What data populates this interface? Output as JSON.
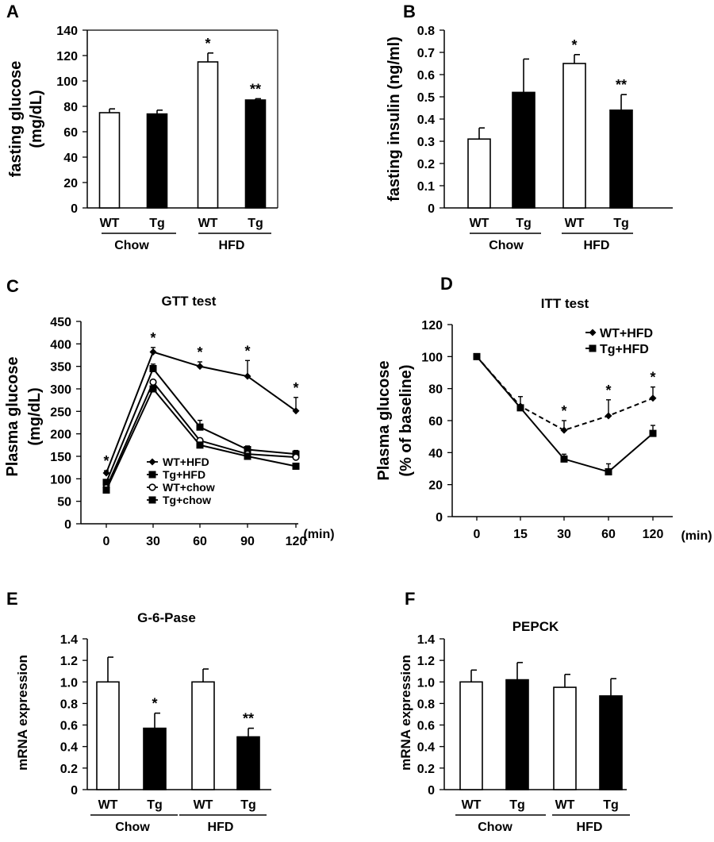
{
  "chart_data": [
    {
      "panel": "A",
      "type": "bar",
      "title": "",
      "ylabel_lines": [
        "fasting glucose",
        "(mg/dL)"
      ],
      "ylim": [
        0,
        140
      ],
      "yticks": [
        "0",
        "20",
        "40",
        "60",
        "80",
        "100",
        "120",
        "140"
      ],
      "categories": [
        "WT",
        "Tg",
        "WT",
        "Tg"
      ],
      "groups": [
        "Chow",
        "HFD"
      ],
      "values": [
        75,
        74,
        115,
        85
      ],
      "errors": [
        3,
        3,
        7,
        1
      ],
      "fills": [
        "#ffffff",
        "#000000",
        "#ffffff",
        "#000000"
      ],
      "annotations": [
        "",
        "",
        "*",
        "**"
      ]
    },
    {
      "panel": "B",
      "type": "bar",
      "title": "",
      "ylabel_lines": [
        "fasting insulin (ng/ml)"
      ],
      "ylim": [
        0,
        0.8
      ],
      "yticks": [
        "0",
        "0.1",
        "0.2",
        "0.3",
        "0.4",
        "0.5",
        "0.6",
        "0.7",
        "0.8"
      ],
      "categories": [
        "WT",
        "Tg",
        "WT",
        "Tg"
      ],
      "groups": [
        "Chow",
        "HFD"
      ],
      "values": [
        0.31,
        0.52,
        0.65,
        0.44
      ],
      "errors": [
        0.05,
        0.15,
        0.04,
        0.07
      ],
      "fills": [
        "#ffffff",
        "#000000",
        "#ffffff",
        "#000000"
      ],
      "annotations": [
        "",
        "",
        "*",
        "**"
      ]
    },
    {
      "panel": "C",
      "type": "line",
      "title": "GTT test",
      "ylabel_lines": [
        "Plasma glucose",
        "(mg/dL)"
      ],
      "xunit": "(min)",
      "x": [
        "0",
        "30",
        "60",
        "90",
        "120"
      ],
      "ylim": [
        0,
        450
      ],
      "yticks": [
        "0",
        "50",
        "100",
        "150",
        "200",
        "250",
        "300",
        "350",
        "400",
        "450"
      ],
      "series": [
        {
          "name": "WT+HFD",
          "marker": "diamond",
          "dashed": false,
          "values": [
            113,
            382,
            350,
            328,
            251
          ],
          "errors": [
            5,
            10,
            10,
            35,
            30
          ]
        },
        {
          "name": "Tg+HFD",
          "marker": "square",
          "dashed": false,
          "values": [
            92,
            345,
            215,
            165,
            155
          ],
          "errors": [
            5,
            10,
            15,
            8,
            8
          ]
        },
        {
          "name": "WT+chow",
          "marker": "circle",
          "dashed": false,
          "values": [
            80,
            315,
            185,
            155,
            148
          ],
          "errors": [
            0,
            0,
            0,
            0,
            0
          ]
        },
        {
          "name": "Tg+chow",
          "marker": "square",
          "dashed": false,
          "values": [
            75,
            300,
            175,
            150,
            128
          ],
          "errors": [
            0,
            0,
            0,
            0,
            0
          ]
        }
      ],
      "annotations": [
        "*",
        "*",
        "*",
        "*",
        "*"
      ]
    },
    {
      "panel": "D",
      "type": "line",
      "title": "ITT test",
      "ylabel_lines": [
        "Plasma glucose",
        "(% of baseline)"
      ],
      "xunit": "(min)",
      "x": [
        "0",
        "15",
        "30",
        "60",
        "120"
      ],
      "ylim": [
        0,
        120
      ],
      "yticks": [
        "0",
        "20",
        "40",
        "60",
        "80",
        "100",
        "120"
      ],
      "series": [
        {
          "name": "WT+HFD",
          "marker": "diamond",
          "dashed": true,
          "values": [
            100,
            69,
            54,
            63,
            74
          ],
          "errors": [
            0,
            6,
            6,
            10,
            7
          ]
        },
        {
          "name": "Tg+HFD",
          "marker": "square",
          "dashed": false,
          "values": [
            100,
            68,
            36,
            28,
            52
          ],
          "errors": [
            0,
            0,
            3,
            5,
            5
          ]
        }
      ],
      "annotations": [
        "",
        "",
        "*",
        "*",
        "*"
      ]
    },
    {
      "panel": "E",
      "type": "bar",
      "title": "G-6-Pase",
      "ylabel_lines": [
        "mRNA expression"
      ],
      "ylim": [
        0,
        1.4
      ],
      "yticks": [
        "0",
        "0.2",
        "0.4",
        "0.6",
        "0.8",
        "1.0",
        "1.2",
        "1.4"
      ],
      "categories": [
        "WT",
        "Tg",
        "WT",
        "Tg"
      ],
      "groups": [
        "Chow",
        "HFD"
      ],
      "values": [
        1.0,
        0.57,
        1.0,
        0.49
      ],
      "errors": [
        0.23,
        0.14,
        0.12,
        0.08
      ],
      "fills": [
        "#ffffff",
        "#000000",
        "#ffffff",
        "#000000"
      ],
      "annotations": [
        "",
        "*",
        "",
        "**"
      ]
    },
    {
      "panel": "F",
      "type": "bar",
      "title": "PEPCK",
      "ylabel_lines": [
        "mRNA expression"
      ],
      "ylim": [
        0,
        1.4
      ],
      "yticks": [
        "0",
        "0.2",
        "0.4",
        "0.6",
        "0.8",
        "1.0",
        "1.2",
        "1.4"
      ],
      "categories": [
        "WT",
        "Tg",
        "WT",
        "Tg"
      ],
      "groups": [
        "Chow",
        "HFD"
      ],
      "values": [
        1.0,
        1.02,
        0.95,
        0.87
      ],
      "errors": [
        0.11,
        0.16,
        0.12,
        0.16
      ],
      "fills": [
        "#ffffff",
        "#000000",
        "#ffffff",
        "#000000"
      ],
      "annotations": [
        "",
        "",
        "",
        ""
      ]
    }
  ]
}
